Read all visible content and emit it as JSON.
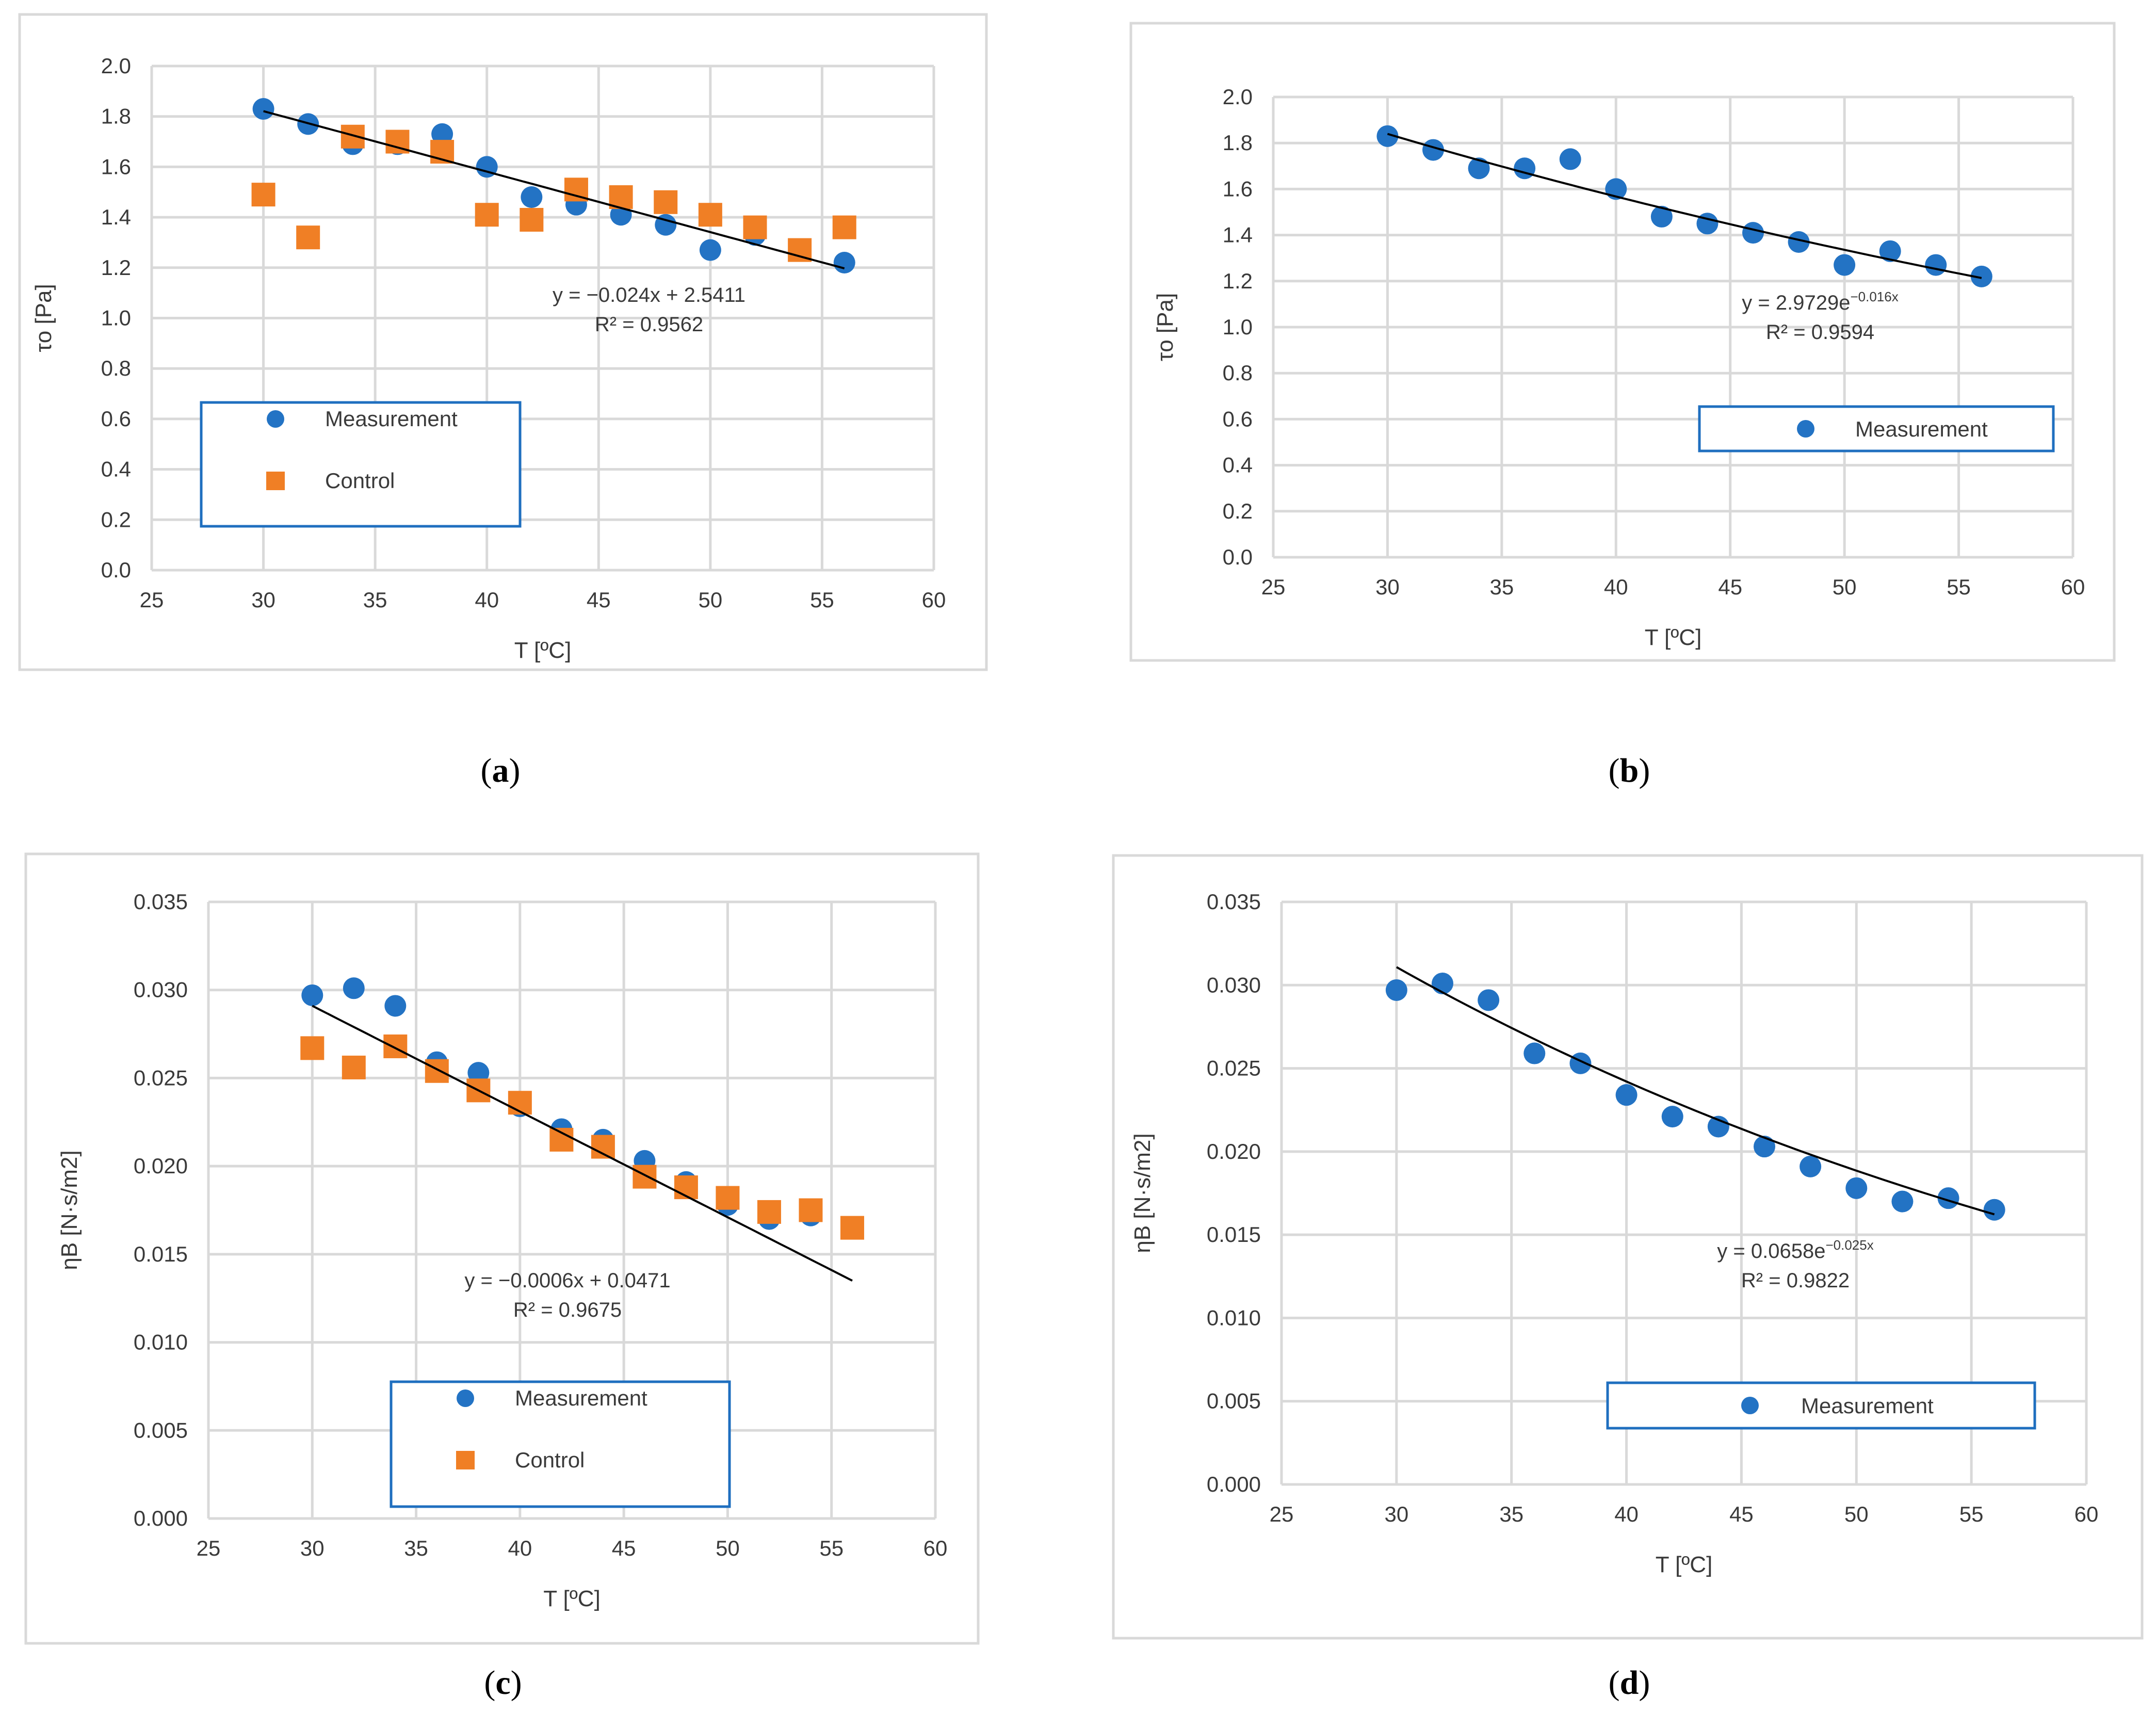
{
  "figure": {
    "panel_labels": [
      "(a)",
      "(b)",
      "(c)",
      "(d)"
    ]
  },
  "colors": {
    "measurement": "#2373C4",
    "control": "#F07F25",
    "trendline": "#000000",
    "grid": "#D9D9D9",
    "legend_border": "#1F6FBF",
    "frame": "#D9D9D9"
  },
  "chart_data": [
    {
      "id": "a",
      "type": "scatter",
      "xlabel": "T [ºC]",
      "ylabel": "τo [Pa]",
      "xlim": [
        25,
        60
      ],
      "ylim": [
        0.0,
        2.0
      ],
      "xticks": [
        "25",
        "30",
        "35",
        "40",
        "45",
        "50",
        "55",
        "60"
      ],
      "yticks": [
        "0.0",
        "0.2",
        "0.4",
        "0.6",
        "0.8",
        "1.0",
        "1.2",
        "1.4",
        "1.6",
        "1.8",
        "2.0"
      ],
      "grid": true,
      "series": [
        {
          "name": "Measurement",
          "marker": "circle",
          "x": [
            30,
            32,
            34,
            36,
            38,
            40,
            42,
            44,
            46,
            48,
            50,
            52,
            54,
            56
          ],
          "y": [
            1.83,
            1.77,
            1.69,
            1.69,
            1.73,
            1.6,
            1.48,
            1.45,
            1.41,
            1.37,
            1.27,
            1.33,
            1.27,
            1.22
          ]
        },
        {
          "name": "Control",
          "marker": "square",
          "x": [
            30,
            32,
            34,
            36,
            38,
            40,
            42,
            44,
            46,
            48,
            50,
            52,
            54,
            56
          ],
          "y": [
            1.49,
            1.32,
            1.72,
            1.7,
            1.66,
            1.41,
            1.39,
            1.51,
            1.48,
            1.46,
            1.41,
            1.36,
            1.27,
            1.36
          ]
        }
      ],
      "trendline": {
        "kind": "linear",
        "a": -0.024,
        "b": 2.5411,
        "x_range": [
          30,
          56
        ]
      },
      "equation": "y = −0.024x + 2.5411",
      "r2": "R² = 0.9562",
      "legend": [
        "Measurement",
        "Control"
      ]
    },
    {
      "id": "b",
      "type": "scatter",
      "xlabel": "T [ºC]",
      "ylabel": "τo [Pa]",
      "xlim": [
        25,
        60
      ],
      "ylim": [
        0.0,
        2.0
      ],
      "xticks": [
        "25",
        "30",
        "35",
        "40",
        "45",
        "50",
        "55",
        "60"
      ],
      "yticks": [
        "0.0",
        "0.2",
        "0.4",
        "0.6",
        "0.8",
        "1.0",
        "1.2",
        "1.4",
        "1.6",
        "1.8",
        "2.0"
      ],
      "grid": true,
      "series": [
        {
          "name": "Measurement",
          "marker": "circle",
          "x": [
            30,
            32,
            34,
            36,
            38,
            40,
            42,
            44,
            46,
            48,
            50,
            52,
            54,
            56
          ],
          "y": [
            1.83,
            1.77,
            1.69,
            1.69,
            1.73,
            1.6,
            1.48,
            1.45,
            1.41,
            1.37,
            1.27,
            1.33,
            1.27,
            1.22
          ]
        }
      ],
      "trendline": {
        "kind": "exponential",
        "a": 2.9729,
        "b": -0.016,
        "x_range": [
          30,
          56
        ]
      },
      "equation_main": "y = 2.9729e",
      "equation_exp": "−0.016x",
      "r2": "R² = 0.9594",
      "legend": [
        "Measurement"
      ]
    },
    {
      "id": "c",
      "type": "scatter",
      "xlabel": "T [ºC]",
      "ylabel": "ηB [N·s/m2]",
      "xlim": [
        25,
        60
      ],
      "ylim": [
        0.0,
        0.035
      ],
      "xticks": [
        "25",
        "30",
        "35",
        "40",
        "45",
        "50",
        "55",
        "60"
      ],
      "yticks": [
        "0.000",
        "0.005",
        "0.010",
        "0.015",
        "0.020",
        "0.025",
        "0.030",
        "0.035"
      ],
      "grid": true,
      "series": [
        {
          "name": "Measurement",
          "marker": "circle",
          "x": [
            30,
            32,
            34,
            36,
            38,
            40,
            42,
            44,
            46,
            48,
            50,
            52,
            54,
            56
          ],
          "y": [
            0.0297,
            0.0301,
            0.0291,
            0.0259,
            0.0253,
            0.0234,
            0.0221,
            0.0215,
            0.0203,
            0.0191,
            0.0178,
            0.017,
            0.0172,
            0.0165
          ]
        },
        {
          "name": "Control",
          "marker": "square",
          "x": [
            30,
            32,
            34,
            36,
            38,
            40,
            42,
            44,
            46,
            48,
            50,
            52,
            54,
            56
          ],
          "y": [
            0.0267,
            0.0256,
            0.0268,
            0.0254,
            0.0243,
            0.0236,
            0.0215,
            0.0211,
            0.0194,
            0.0188,
            0.0182,
            0.0174,
            0.0175,
            0.0165
          ]
        }
      ],
      "trendline": {
        "kind": "linear",
        "a": -0.0006,
        "b": 0.0471,
        "x_range": [
          30,
          56
        ]
      },
      "equation": "y = −0.0006x + 0.0471",
      "r2": "R² = 0.9675",
      "legend": [
        "Measurement",
        "Control"
      ]
    },
    {
      "id": "d",
      "type": "scatter",
      "xlabel": "T [ºC]",
      "ylabel": "ηB [N·s/m2]",
      "xlim": [
        25,
        60
      ],
      "ylim": [
        0.0,
        0.035
      ],
      "xticks": [
        "25",
        "30",
        "35",
        "40",
        "45",
        "50",
        "55",
        "60"
      ],
      "yticks": [
        "0.000",
        "0.005",
        "0.010",
        "0.015",
        "0.020",
        "0.025",
        "0.030",
        "0.035"
      ],
      "grid": true,
      "series": [
        {
          "name": "Measurement",
          "marker": "circle",
          "x": [
            30,
            32,
            34,
            36,
            38,
            40,
            42,
            44,
            46,
            48,
            50,
            52,
            54,
            56
          ],
          "y": [
            0.0297,
            0.0301,
            0.0291,
            0.0259,
            0.0253,
            0.0234,
            0.0221,
            0.0215,
            0.0203,
            0.0191,
            0.0178,
            0.017,
            0.0172,
            0.0165
          ]
        }
      ],
      "trendline": {
        "kind": "exponential",
        "a": 0.0658,
        "b": -0.025,
        "x_range": [
          30,
          56
        ]
      },
      "equation_main": "y = 0.0658e",
      "equation_exp": "−0.025x",
      "r2": "R² = 0.9822",
      "legend": [
        "Measurement"
      ]
    }
  ]
}
